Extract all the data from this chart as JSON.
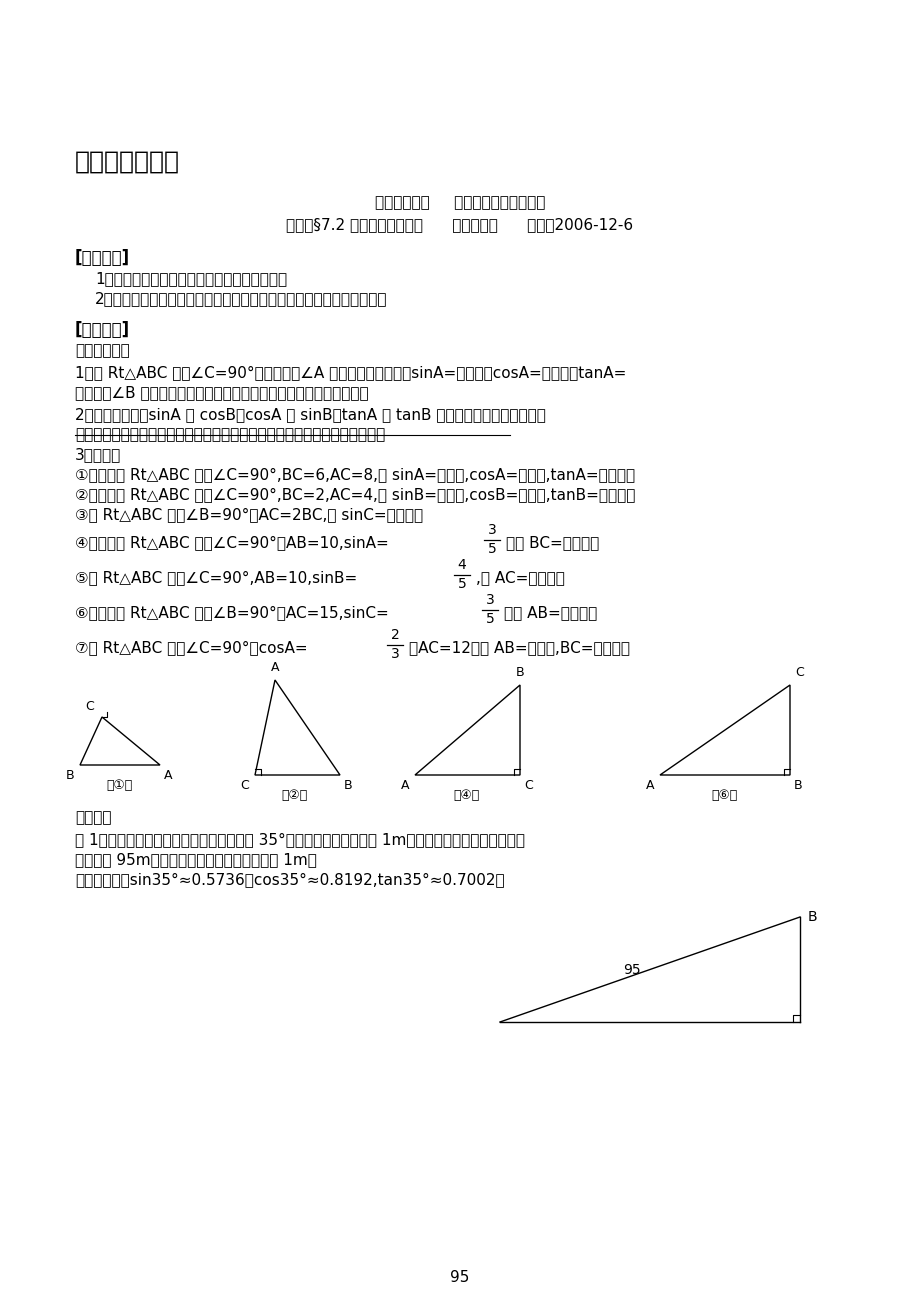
{
  "title": "初三数学教学案",
  "author_line": "执笔：周广雄     审核：初三数学备课组",
  "course_line": "课题：§7.2 正弦、余弦（二）      课型：新授      时间：2006-12-6",
  "section1_title": "[学习目标]",
  "section1_items": [
    "1、能够根据直角三角形的边角关系进行计算；",
    "2、能用三角函数的知识根据三角形中已知的边和角求出未知的边和角。"
  ],
  "section2_title": "[学习过程]",
  "subsection1": "一、知识回顾",
  "q1": "1、在 Rt△ABC 中，∠C=90°，分别写出∠A 的三角函数关系式：sinA=＿＿＿，cosA=＿＿＿，tanA=",
  "q1b": "＿＿＿。∠B 的三角函数关系式＿＿＿＿＿＿＿＿＿＿＿＿＿＿＿＿。",
  "q2": "2、比较上述中，sinA 与 cosB，cosA 与 sinB，tanA 与 tanB 的表达式，你有什么发现？",
  "q2_line": "＿＿＿＿＿＿＿＿＿＿＿＿＿＿＿＿＿＿＿＿＿＿＿＿＿＿＿＿＿＿＿＿＿。",
  "q3_title": "3、练习：",
  "q3_1": "①如图，在 Rt△ABC 中，∠C=90°,BC=6,AC=8,则 sinA=＿＿＿,cosA=＿＿＿,tanA=＿＿＿。",
  "q3_2": "②如图，在 Rt△ABC 中，∠C=90°,BC=2,AC=4,则 sinB=＿＿＿,cosB=＿＿＿,tanB=＿＿＿。",
  "q3_3": "③在 Rt△ABC 中，∠B=90°，AC=2BC,则 sinC=＿＿＿。",
  "q3_4a": "④如图，在 Rt△ABC 中，∠C=90°，AB=10,sinA=",
  "q3_4_frac_num": "3",
  "q3_4_frac_den": "5",
  "q3_4b": "，则 BC=＿＿＿。",
  "q3_5a": "⑤在 Rt△ABC 中，∠C=90°,AB=10,sinB=",
  "q3_5_frac_num": "4",
  "q3_5_frac_den": "5",
  "q3_5b": ",则 AC=＿＿＿。",
  "q3_6a": "⑥如图，在 Rt△ABC 中，∠B=90°，AC=15,sinC=",
  "q3_6_frac_num": "3",
  "q3_6_frac_den": "5",
  "q3_6b": "，则 AB=＿＿＿。",
  "q3_7a": "⑦在 Rt△ABC 中，∠C=90°，cosA=",
  "q3_7_frac_num": "2",
  "q3_7_frac_den": "3",
  "q3_7b": "，AC=12，则 AB=＿＿＿,BC=＿＿＿。",
  "section3": "二、例题",
  "example1a": "例 1、小明正在放风筝，风筝线与水平线成 35°角时，小明的手离地面 1m，若把放出的风筝线看成一条",
  "example1b": "线段，长 95m，求风筝此时的高度。（精确到 1m）",
  "example1c": "（参考数据：sin35°≈0.5736，cos35°≈0.8192,tan35°≈0.7002）",
  "page_num": "95",
  "bg_color": "#ffffff",
  "text_color": "#000000"
}
